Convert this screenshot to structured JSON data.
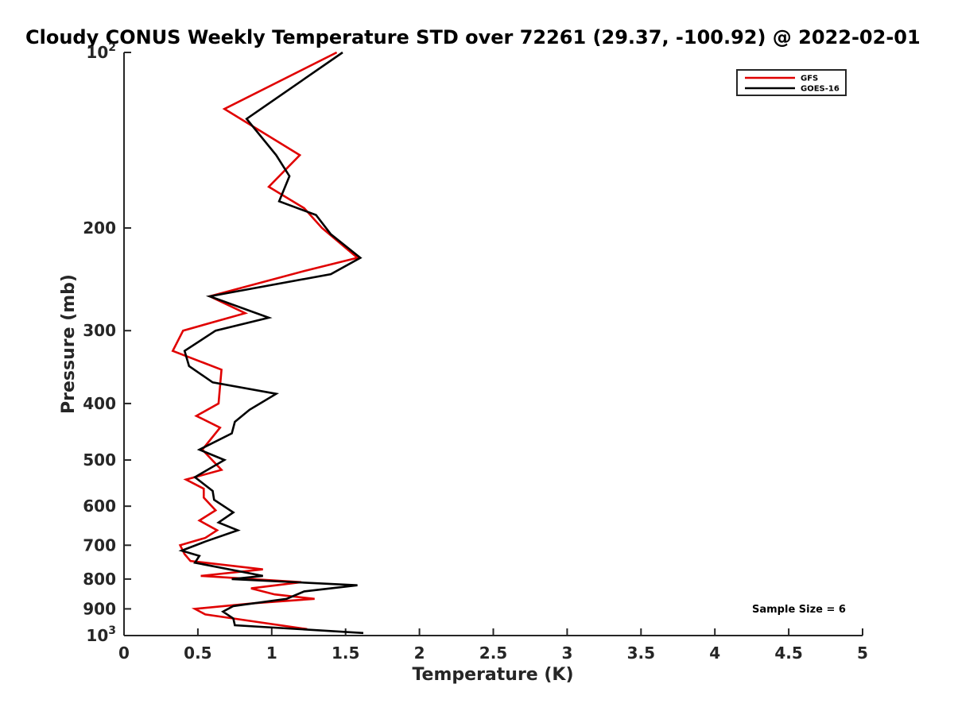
{
  "chart_data": {
    "type": "line",
    "title": "Cloudy CONUS Weekly Temperature STD over 72261 (29.37, -100.92) @ 2022-02-01",
    "xlabel": "Temperature (K)",
    "ylabel": "Pressure (mb)",
    "xlim": [
      0,
      5
    ],
    "ylim": [
      100,
      1000
    ],
    "y_scale": "log",
    "y_reversed": true,
    "x_ticks": [
      "0",
      "0.5",
      "1",
      "1.5",
      "2",
      "2.5",
      "3",
      "3.5",
      "4",
      "4.5",
      "5"
    ],
    "x_tick_values": [
      0,
      0.5,
      1,
      1.5,
      2,
      2.5,
      3,
      3.5,
      4,
      4.5,
      5
    ],
    "y_ticks": [
      {
        "value": 100,
        "base": "10",
        "exp": "2"
      },
      {
        "value": 200,
        "label": "200"
      },
      {
        "value": 300,
        "label": "300"
      },
      {
        "value": 400,
        "label": "400"
      },
      {
        "value": 500,
        "label": "500"
      },
      {
        "value": 600,
        "label": "600"
      },
      {
        "value": 700,
        "label": "700"
      },
      {
        "value": 800,
        "label": "800"
      },
      {
        "value": 900,
        "label": "900"
      },
      {
        "value": 1000,
        "base": "10",
        "exp": "3"
      }
    ],
    "grid": false,
    "legend_position": "top-right",
    "annotation": "Sample Size = 6",
    "series": [
      {
        "name": "GFS",
        "color": "#e00000",
        "points": [
          [
            1.44,
            100
          ],
          [
            0.68,
            125
          ],
          [
            1.19,
            150
          ],
          [
            0.98,
            170
          ],
          [
            1.22,
            185
          ],
          [
            1.34,
            200
          ],
          [
            1.58,
            225
          ],
          [
            1.22,
            237
          ],
          [
            0.58,
            262
          ],
          [
            0.82,
            280
          ],
          [
            0.4,
            300
          ],
          [
            0.33,
            325
          ],
          [
            0.66,
            350
          ],
          [
            0.64,
            400
          ],
          [
            0.49,
            420
          ],
          [
            0.65,
            440
          ],
          [
            0.53,
            480
          ],
          [
            0.66,
            520
          ],
          [
            0.42,
            540
          ],
          [
            0.54,
            560
          ],
          [
            0.54,
            580
          ],
          [
            0.62,
            610
          ],
          [
            0.51,
            635
          ],
          [
            0.63,
            660
          ],
          [
            0.55,
            680
          ],
          [
            0.38,
            700
          ],
          [
            0.41,
            725
          ],
          [
            0.45,
            745
          ],
          [
            0.94,
            770
          ],
          [
            0.52,
            790
          ],
          [
            1.2,
            810
          ],
          [
            0.86,
            830
          ],
          [
            1.02,
            850
          ],
          [
            1.29,
            865
          ],
          [
            0.88,
            880
          ],
          [
            0.48,
            900
          ],
          [
            0.55,
            920
          ],
          [
            0.93,
            950
          ],
          [
            1.24,
            975
          ]
        ]
      },
      {
        "name": "GOES-16",
        "color": "#000000",
        "points": [
          [
            1.48,
            100
          ],
          [
            0.83,
            130
          ],
          [
            1.03,
            150
          ],
          [
            1.12,
            163
          ],
          [
            1.05,
            180
          ],
          [
            1.3,
            190
          ],
          [
            1.4,
            205
          ],
          [
            1.6,
            225
          ],
          [
            1.4,
            240
          ],
          [
            0.58,
            262
          ],
          [
            0.98,
            285
          ],
          [
            0.62,
            300
          ],
          [
            0.41,
            325
          ],
          [
            0.44,
            345
          ],
          [
            0.6,
            368
          ],
          [
            1.03,
            385
          ],
          [
            0.85,
            410
          ],
          [
            0.75,
            430
          ],
          [
            0.73,
            450
          ],
          [
            0.51,
            480
          ],
          [
            0.68,
            500
          ],
          [
            0.48,
            535
          ],
          [
            0.6,
            565
          ],
          [
            0.61,
            585
          ],
          [
            0.74,
            615
          ],
          [
            0.64,
            640
          ],
          [
            0.77,
            660
          ],
          [
            0.55,
            690
          ],
          [
            0.39,
            715
          ],
          [
            0.51,
            730
          ],
          [
            0.48,
            750
          ],
          [
            0.94,
            790
          ],
          [
            0.73,
            800
          ],
          [
            1.58,
            820
          ],
          [
            1.22,
            840
          ],
          [
            1.1,
            865
          ],
          [
            0.74,
            890
          ],
          [
            0.67,
            910
          ],
          [
            0.74,
            935
          ],
          [
            0.75,
            960
          ],
          [
            1.62,
            990
          ]
        ]
      }
    ]
  }
}
